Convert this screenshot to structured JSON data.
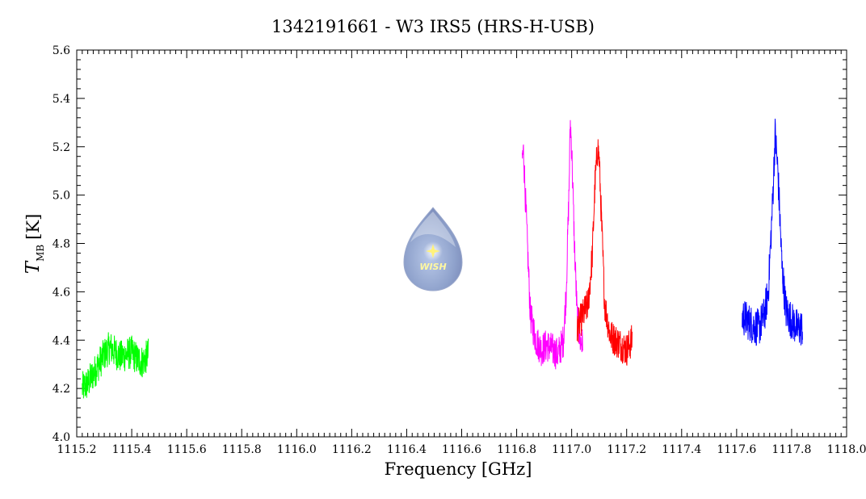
{
  "chart_data": {
    "type": "line",
    "title": "1342191661 - W3 IRS5 (HRS-H-USB)",
    "xlabel": "Frequency [GHz]",
    "ylabel_main": "T",
    "ylabel_sub": "MB",
    "ylabel_unit": "[K]",
    "xlim": [
      1115.2,
      1118.0
    ],
    "ylim": [
      4.0,
      5.6
    ],
    "xticks": [
      "1115.2",
      "1115.4",
      "1115.6",
      "1115.8",
      "1116.0",
      "1116.2",
      "1116.4",
      "1116.6",
      "1116.8",
      "1117.0",
      "1117.2",
      "1117.4",
      "1117.6",
      "1117.8",
      "1118.0"
    ],
    "yticks": [
      "4.0",
      "4.2",
      "4.4",
      "4.6",
      "4.8",
      "5.0",
      "5.2",
      "5.4",
      "5.6"
    ],
    "grid": false,
    "logo_text": "WISH",
    "series": [
      {
        "color": "#00ff00",
        "x": [
          1115.22,
          1115.24,
          1115.26,
          1115.28,
          1115.3,
          1115.32,
          1115.34,
          1115.36,
          1115.38,
          1115.4,
          1115.42,
          1115.44,
          1115.46
        ],
        "y": [
          4.2,
          4.22,
          4.26,
          4.3,
          4.34,
          4.37,
          4.35,
          4.33,
          4.34,
          4.35,
          4.32,
          4.31,
          4.34
        ],
        "noise": 0.07
      },
      {
        "color": "#ff00ff",
        "x": [
          1116.82,
          1116.825,
          1116.835,
          1116.85,
          1116.87,
          1116.89,
          1116.91,
          1116.93,
          1116.95,
          1116.97,
          1116.98,
          1116.99,
          1116.995,
          1117.0,
          1117.01,
          1117.02,
          1117.03,
          1117.04
        ],
        "y": [
          5.15,
          5.18,
          4.9,
          4.5,
          4.4,
          4.36,
          4.38,
          4.36,
          4.34,
          4.4,
          4.6,
          5.0,
          5.3,
          5.2,
          4.8,
          4.5,
          4.4,
          4.38
        ],
        "noise": 0.07
      },
      {
        "color": "#ff0000",
        "x": [
          1117.02,
          1117.04,
          1117.06,
          1117.075,
          1117.085,
          1117.095,
          1117.1,
          1117.11,
          1117.12,
          1117.14,
          1117.16,
          1117.18,
          1117.2,
          1117.22
        ],
        "y": [
          4.45,
          4.5,
          4.55,
          4.75,
          5.05,
          5.2,
          5.15,
          4.85,
          4.55,
          4.42,
          4.4,
          4.38,
          4.36,
          4.4
        ],
        "noise": 0.07
      },
      {
        "color": "#0000ff",
        "x": [
          1117.62,
          1117.64,
          1117.66,
          1117.68,
          1117.7,
          1117.715,
          1117.73,
          1117.74,
          1117.75,
          1117.765,
          1117.78,
          1117.8,
          1117.82,
          1117.84
        ],
        "y": [
          4.5,
          4.48,
          4.46,
          4.45,
          4.5,
          4.6,
          4.95,
          5.25,
          5.1,
          4.7,
          4.52,
          4.48,
          4.45,
          4.45
        ],
        "noise": 0.08
      }
    ]
  }
}
